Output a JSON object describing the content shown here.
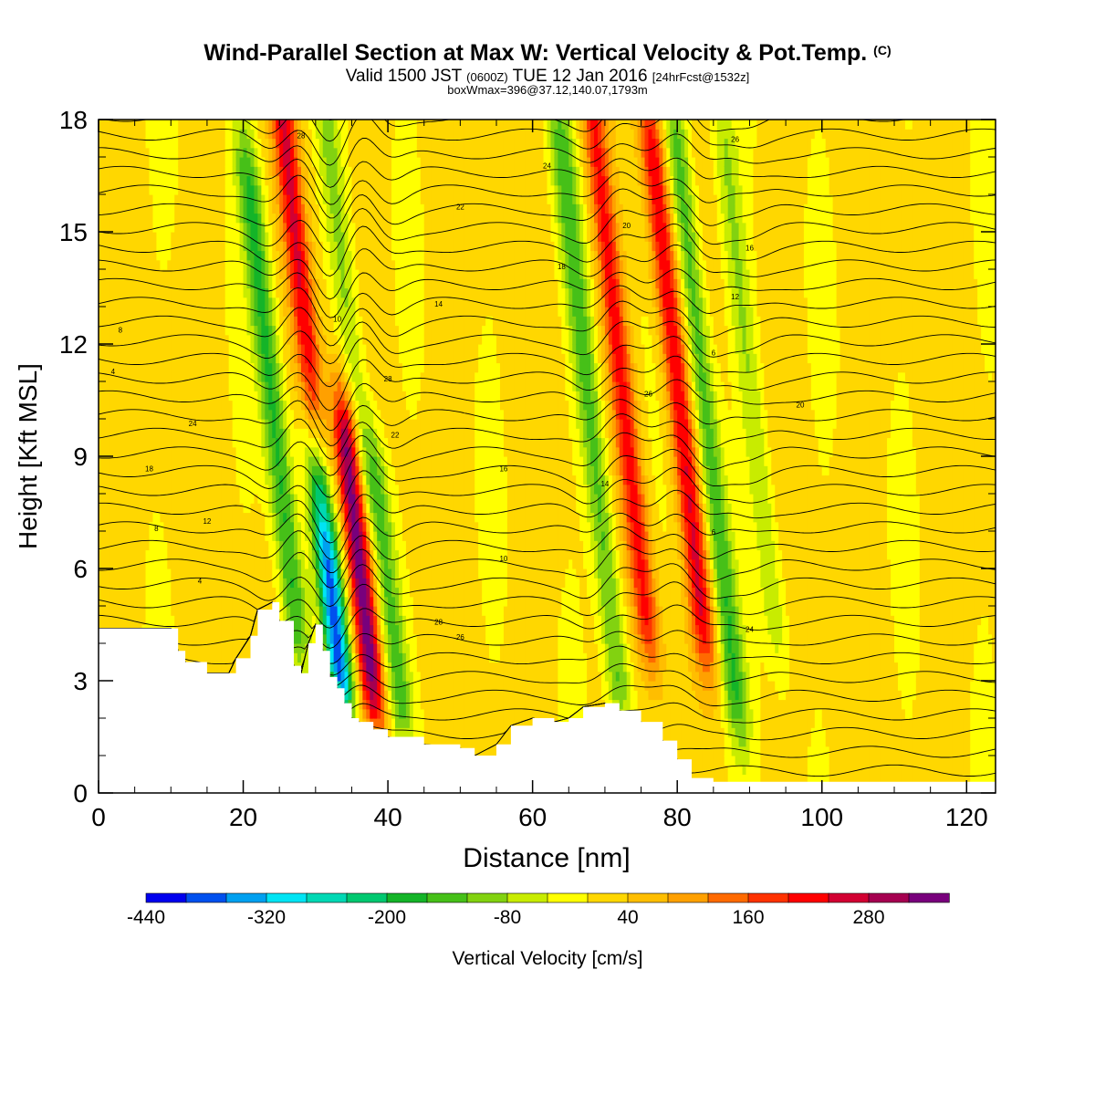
{
  "header": {
    "title_main": "Wind-Parallel Section at Max W: Vertical Velocity & Pot.Temp.",
    "title_mark": "(C)",
    "subtitle_a": "Valid 1500 JST",
    "subtitle_b": "(0600Z)",
    "subtitle_c": "TUE 12 Jan 2016",
    "subtitle_d": "[24hrFcst@1532z]",
    "subtitle_line2": "boxWmax=396@37.12,140.07,1793m"
  },
  "chart_data": {
    "type": "heatmap",
    "xlabel": "Distance [nm]",
    "ylabel": "Height [Kft MSL]",
    "xlim": [
      0,
      124
    ],
    "ylim": [
      0,
      18
    ],
    "x_ticks": [
      0,
      20,
      40,
      60,
      80,
      100,
      120
    ],
    "y_ticks": [
      0,
      3,
      6,
      9,
      12,
      15,
      18
    ],
    "colorbar": {
      "label": "Vertical Velocity [cm/s]",
      "range": [
        -440,
        360
      ],
      "tick_values": [
        -440,
        -320,
        -200,
        -80,
        40,
        160,
        280
      ],
      "tick_labels": [
        "-440",
        "-320",
        "-200",
        "-80",
        "40",
        "160",
        "280"
      ],
      "colors": [
        "#0000ee",
        "#0050ee",
        "#00a0f0",
        "#00e4f4",
        "#00d8b4",
        "#00c870",
        "#14b428",
        "#46c018",
        "#82d210",
        "#c8ec00",
        "#ffff00",
        "#ffd700",
        "#ffbe00",
        "#ffa000",
        "#ff6a00",
        "#ff3200",
        "#ff0000",
        "#d20032",
        "#a50050",
        "#78007c"
      ]
    },
    "terrain_profile": {
      "x": [
        0,
        10,
        11,
        12,
        15,
        18,
        19,
        21,
        22,
        24,
        25,
        27,
        28,
        29,
        30,
        31,
        32,
        33,
        34,
        35,
        36,
        38,
        40,
        45,
        50,
        52,
        55,
        57,
        60,
        63,
        65,
        67,
        70,
        72,
        75,
        78,
        80,
        82,
        85,
        90,
        95,
        100,
        110,
        120,
        124
      ],
      "height_kft": [
        4.4,
        4.4,
        3.8,
        3.5,
        3.2,
        3.2,
        3.6,
        4.2,
        4.9,
        5.1,
        4.6,
        3.4,
        3.2,
        4.0,
        4.5,
        3.8,
        3.1,
        2.8,
        2.4,
        2.0,
        1.9,
        1.7,
        1.5,
        1.3,
        1.2,
        1.0,
        1.3,
        1.8,
        2.0,
        1.9,
        2.0,
        2.3,
        2.4,
        2.2,
        1.9,
        1.4,
        0.9,
        0.4,
        0.3,
        0.3,
        0.3,
        0.3,
        0.3,
        0.3,
        0.3
      ]
    },
    "vertical_velocity_features": [
      {
        "x_center": 28,
        "height_range_kft": [
          9,
          18
        ],
        "value_cm_s": 220,
        "note": "updraft"
      },
      {
        "x_center": 24,
        "height_range_kft": [
          5,
          16
        ],
        "value_cm_s": -180,
        "note": "downdraft"
      },
      {
        "x_center": 32,
        "height_range_kft": [
          3.5,
          8
        ],
        "value_cm_s": -380,
        "note": "strong downdraft"
      },
      {
        "x_center": 36,
        "height_range_kft": [
          3.5,
          9
        ],
        "value_cm_s": 330,
        "note": "strong updraft"
      },
      {
        "x_center": 40,
        "height_range_kft": [
          3,
          8
        ],
        "value_cm_s": -150,
        "note": "downdraft"
      },
      {
        "x_center": 34,
        "height_range_kft": [
          9,
          18
        ],
        "value_cm_s": -100,
        "note": "weak downdraft"
      },
      {
        "x_center": 68,
        "height_range_kft": [
          3,
          17
        ],
        "value_cm_s": -150,
        "note": "downdraft"
      },
      {
        "x_center": 72,
        "height_range_kft": [
          5,
          18
        ],
        "value_cm_s": 200,
        "note": "updraft"
      },
      {
        "x_center": 80,
        "height_range_kft": [
          5,
          17
        ],
        "value_cm_s": 230,
        "note": "updraft"
      },
      {
        "x_center": 84,
        "height_range_kft": [
          3,
          17
        ],
        "value_cm_s": -160,
        "note": "downdraft"
      },
      {
        "x_center": 90,
        "height_range_kft": [
          5,
          17
        ],
        "value_cm_s": -90,
        "note": "weak downdraft"
      }
    ],
    "pot_temp_contour_labels": [
      "28",
      "26",
      "24",
      "22",
      "20",
      "18",
      "16",
      "14",
      "12",
      "10",
      "8",
      "6",
      "4"
    ]
  }
}
